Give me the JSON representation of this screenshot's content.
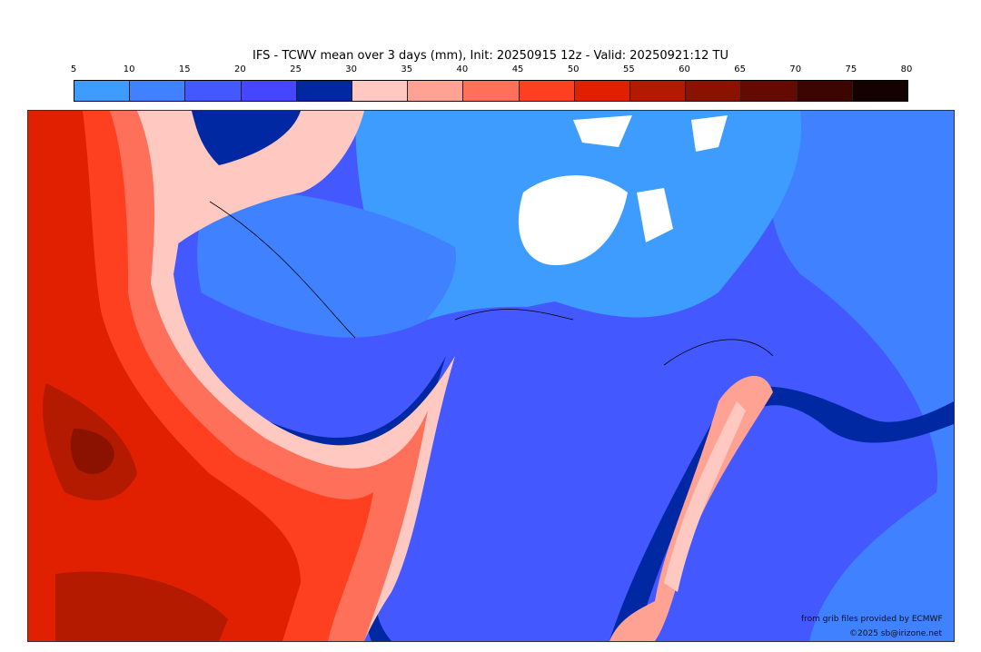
{
  "title": "IFS - TCWV mean over 3 days (mm), Init: 20250915 12z - Valid: 20250921:12 TU",
  "colorbar": {
    "ticks": [
      "5",
      "10",
      "15",
      "20",
      "25",
      "30",
      "35",
      "40",
      "45",
      "50",
      "55",
      "60",
      "65",
      "70",
      "75",
      "80"
    ],
    "colors": [
      "#3f9cff",
      "#4081ff",
      "#4458ff",
      "#4646ff",
      "#0028a2",
      "#ffc9c2",
      "#ffa193",
      "#ff705a",
      "#ff4020",
      "#e02000",
      "#b41a00",
      "#8c1200",
      "#640a00",
      "#3c0500",
      "#140200"
    ]
  },
  "credits": {
    "source": "from grib files provided by ECMWF",
    "copyright": "©2025 sb@irizone.net"
  }
}
